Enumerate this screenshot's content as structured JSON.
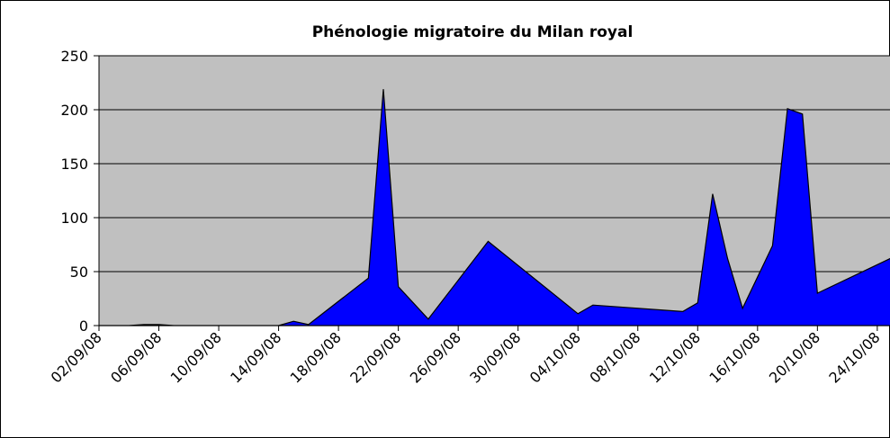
{
  "chart_data": {
    "type": "area",
    "title": "Phénologie migratoire du Milan royal",
    "x": [
      "02/09/08",
      "04/09/08",
      "05/09/08",
      "06/09/08",
      "07/09/08",
      "14/09/08",
      "15/09/08",
      "16/09/08",
      "20/09/08",
      "21/09/08",
      "22/09/08",
      "24/09/08",
      "28/09/08",
      "04/10/08",
      "05/10/08",
      "11/10/08",
      "12/10/08",
      "13/10/08",
      "14/10/08",
      "15/10/08",
      "17/10/08",
      "18/10/08",
      "19/10/08",
      "20/10/08",
      "25/10/08"
    ],
    "series": [
      {
        "name": "Milan royal",
        "color": "#0000ff",
        "values": [
          0,
          0,
          1,
          1,
          0,
          0,
          4,
          1,
          44,
          219,
          36,
          6,
          78,
          11,
          19,
          13,
          21,
          122,
          62,
          16,
          74,
          201,
          196,
          30,
          63
        ]
      }
    ],
    "xlim": [
      "02/09/08",
      "25/10/08"
    ],
    "xticks": [
      "02/09/08",
      "06/09/08",
      "10/09/08",
      "14/09/08",
      "18/09/08",
      "22/09/08",
      "26/09/08",
      "30/09/08",
      "04/10/08",
      "08/10/08",
      "12/10/08",
      "16/10/08",
      "20/10/08",
      "24/10/08"
    ],
    "ylim": [
      0,
      250
    ],
    "yticks": [
      0,
      50,
      100,
      150,
      200,
      250
    ],
    "grid": true,
    "plot_background": "#c0c0c0"
  }
}
